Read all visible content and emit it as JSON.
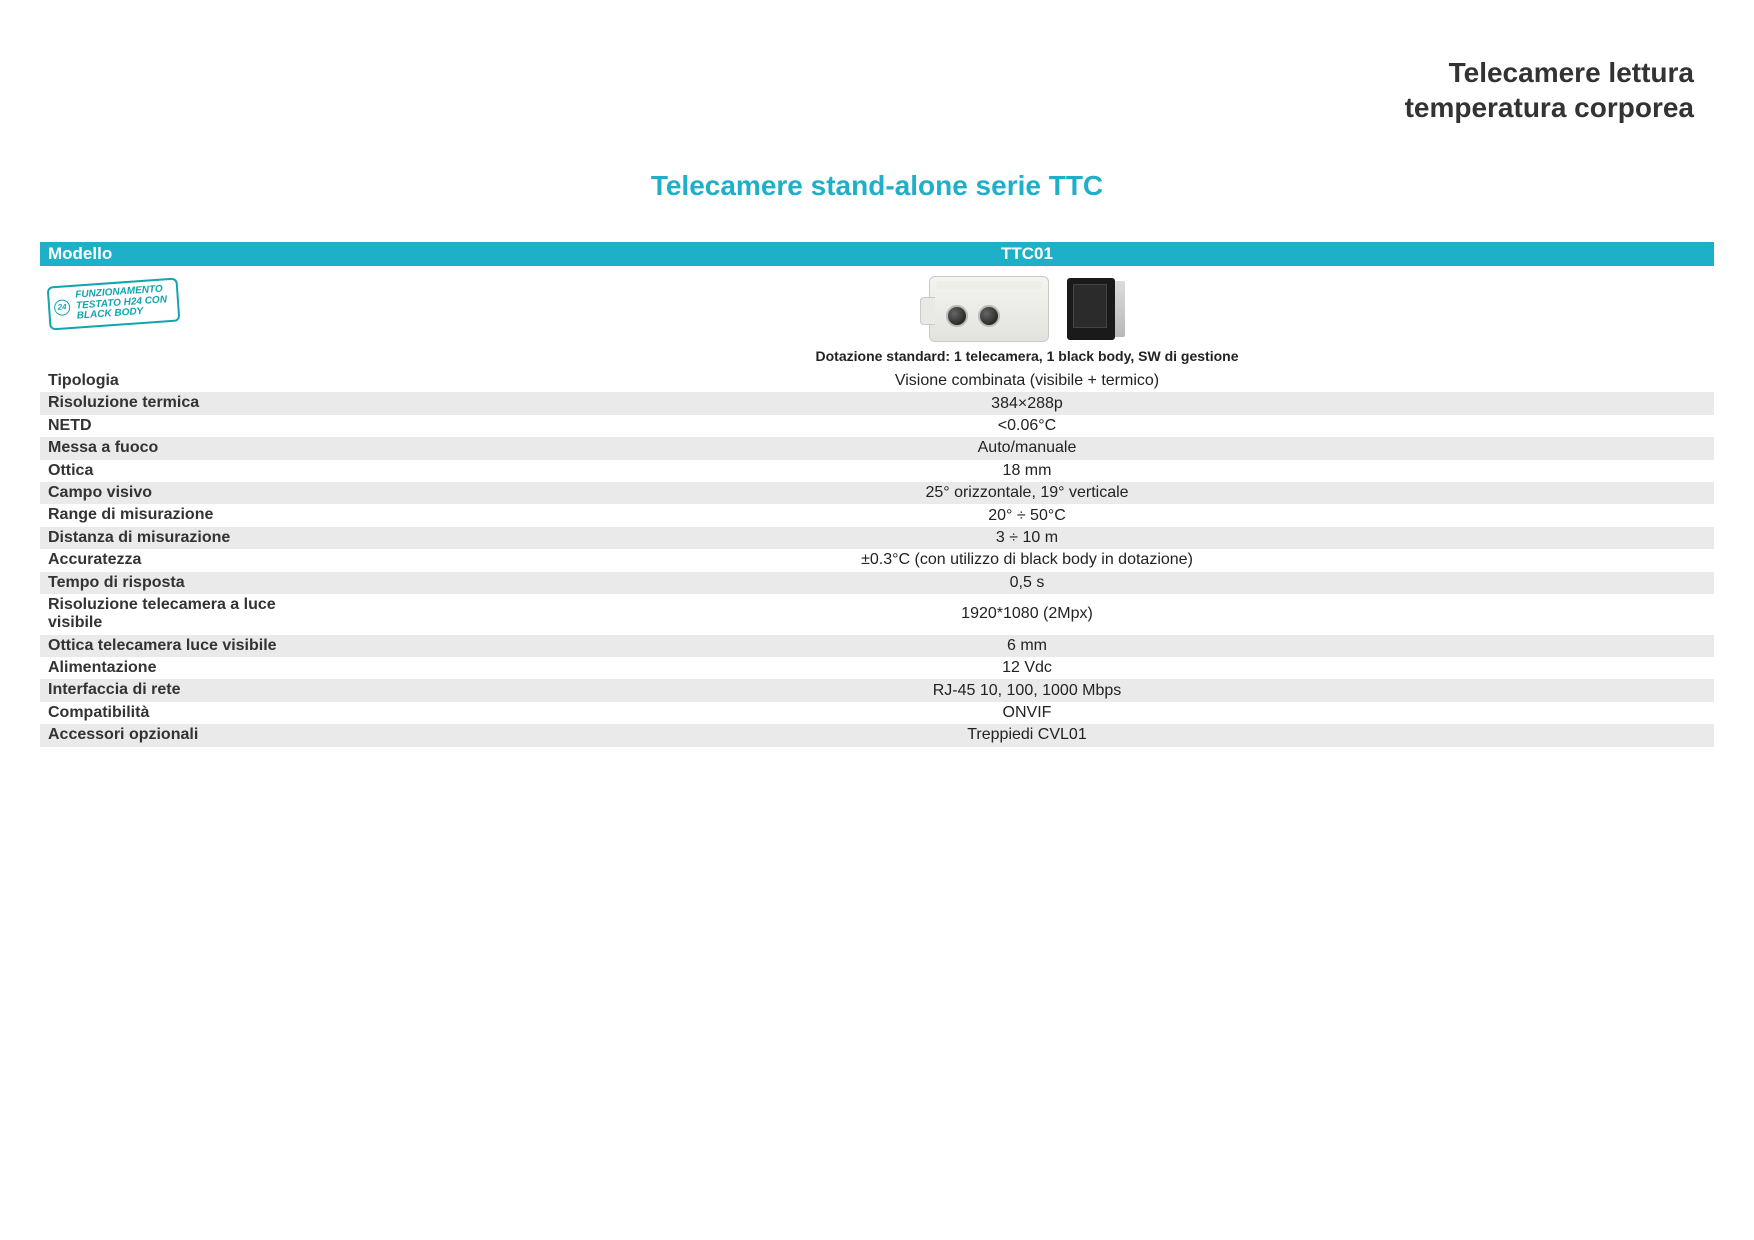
{
  "colors": {
    "accent": "#1fb0c9",
    "row_alt": "#eaeaea",
    "text": "#222222",
    "header_text": "#333333",
    "background": "#ffffff"
  },
  "fonts": {
    "header_size_pt": 28,
    "subtitle_size_pt": 28,
    "row_size_pt": 16,
    "caption_size_pt": 14
  },
  "header": {
    "line1": "Telecamere lettura",
    "line2": "temperatura corporea"
  },
  "subtitle": "Telecamere stand-alone serie TTC",
  "model_bar": {
    "label": "Modello",
    "value": "TTC01"
  },
  "stamp": {
    "line1": "FUNZIONAMENTO",
    "line2": "TESTATO H24 CON",
    "line3": "BLACK BODY",
    "badge": "24"
  },
  "image_caption": "Dotazione standard: 1 telecamera, 1 black body, SW di gestione",
  "specs": [
    {
      "label": "Tipologia",
      "value": "Visione combinata (visibile + termico)"
    },
    {
      "label": "Risoluzione termica",
      "value": "384×288p"
    },
    {
      "label": "NETD",
      "value": "<0.06°C"
    },
    {
      "label": "Messa a fuoco",
      "value": "Auto/manuale"
    },
    {
      "label": "Ottica",
      "value": "18 mm"
    },
    {
      "label": "Campo visivo",
      "value": "25° orizzontale, 19° verticale"
    },
    {
      "label": "Range di misurazione",
      "value": "20° ÷ 50°C"
    },
    {
      "label": "Distanza di misurazione",
      "value": "3 ÷ 10 m"
    },
    {
      "label": "Accuratezza",
      "value": "±0.3°C (con utilizzo di black body in dotazione)"
    },
    {
      "label": "Tempo di risposta",
      "value": "0,5 s"
    },
    {
      "label": "Risoluzione telecamera a luce visibile",
      "value": "1920*1080 (2Mpx)"
    },
    {
      "label": "Ottica telecamera luce visibile",
      "value": "6 mm"
    },
    {
      "label": "Alimentazione",
      "value": "12 Vdc"
    },
    {
      "label": "Interfaccia di rete",
      "value": "RJ-45 10, 100, 1000 Mbps"
    },
    {
      "label": "Compatibilità",
      "value": "ONVIF"
    },
    {
      "label": "Accessori opzionali",
      "value": "Treppiedi CVL01"
    }
  ]
}
